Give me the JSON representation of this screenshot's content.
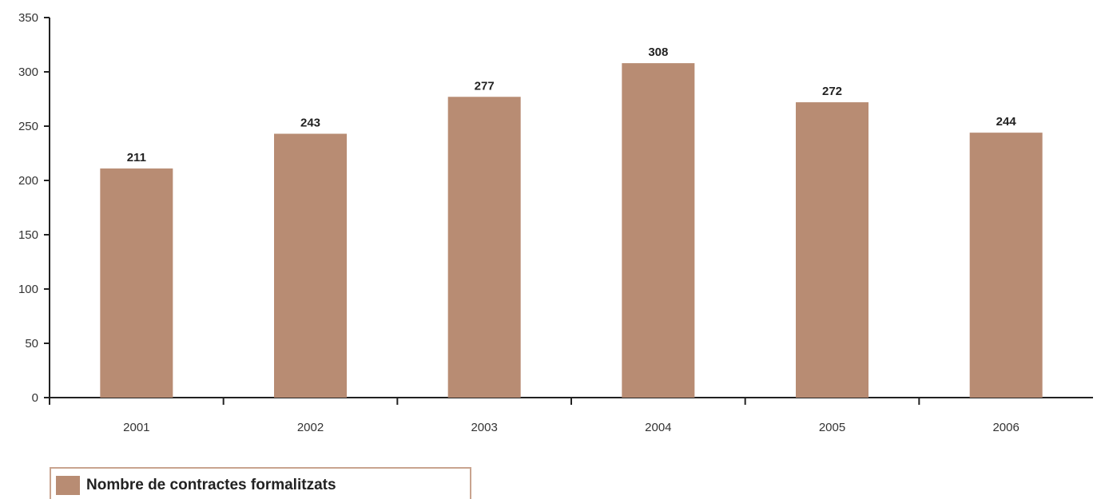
{
  "chart_data": {
    "type": "bar",
    "categories": [
      "2001",
      "2002",
      "2003",
      "2004",
      "2005",
      "2006"
    ],
    "series": [
      {
        "name": "Nombre de contractes formalitzats",
        "values": [
          211,
          243,
          277,
          308,
          272,
          244
        ]
      }
    ],
    "data_labels": [
      "211",
      "243",
      "277",
      "308",
      "272",
      "244"
    ],
    "y_ticks": [
      "0",
      "50",
      "100",
      "150",
      "200",
      "250",
      "300",
      "350"
    ],
    "ylim": [
      0,
      350
    ],
    "title": "",
    "xlabel": "",
    "ylabel": "",
    "grid": false,
    "legend_position": "bottom-left",
    "bar_color": "#b88c73"
  }
}
